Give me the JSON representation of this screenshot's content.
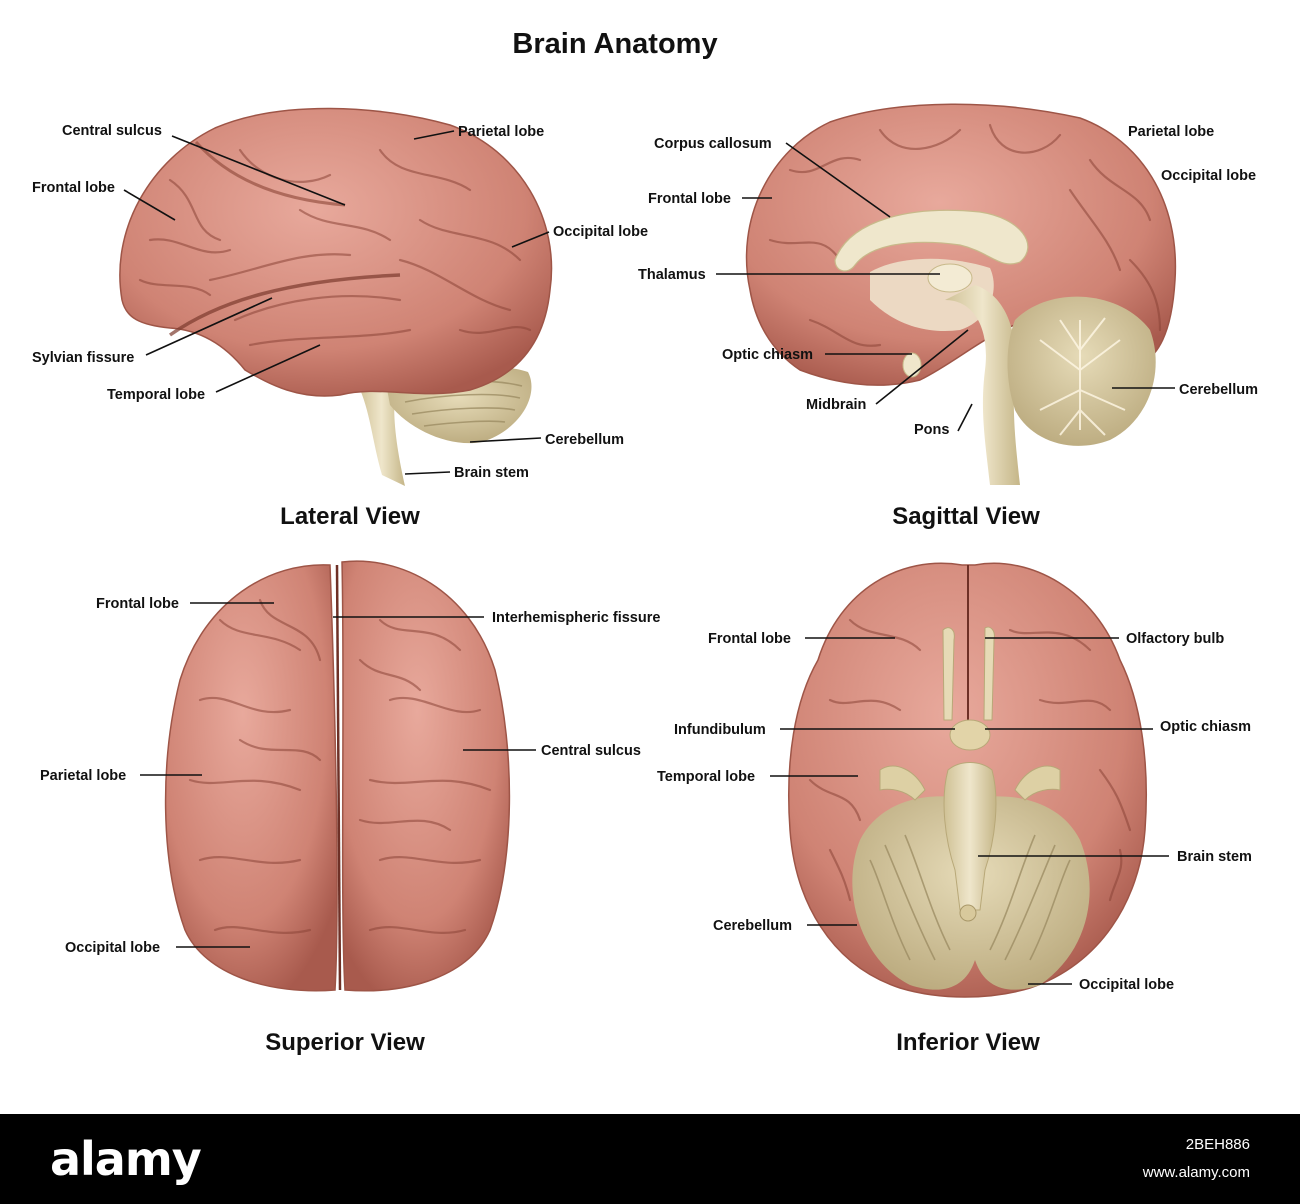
{
  "title": "Brain Anatomy",
  "colors": {
    "cortex": "#d48a7e",
    "cortex_dark": "#b5665a",
    "stem": "#e4d8b4",
    "cerebellum": "#cdbf92",
    "footer": "#000000"
  },
  "views": {
    "lateral": {
      "caption": "Lateral View",
      "labels": [
        "Central sulcus",
        "Parietal lobe",
        "Frontal lobe",
        "Occipital lobe",
        "Sylvian fissure",
        "Temporal lobe",
        "Cerebellum",
        "Brain stem"
      ]
    },
    "sagittal": {
      "caption": "Sagittal View",
      "labels": [
        "Corpus callosum",
        "Parietal lobe",
        "Occipital lobe",
        "Frontal lobe",
        "Thalamus",
        "Optic chiasm",
        "Midbrain",
        "Pons",
        "Cerebellum"
      ]
    },
    "superior": {
      "caption": "Superior View",
      "labels": [
        "Frontal lobe",
        "Interhemispheric fissure",
        "Central sulcus",
        "Parietal lobe",
        "Occipital lobe"
      ]
    },
    "inferior": {
      "caption": "Inferior View",
      "labels": [
        "Frontal lobe",
        "Olfactory bulb",
        "Infundibulum",
        "Optic chiasm",
        "Temporal lobe",
        "Brain stem",
        "Cerebellum",
        "Occipital lobe"
      ]
    }
  },
  "footer": {
    "logo": "alamy",
    "image_id": "2BEH886",
    "site": "www.alamy.com"
  }
}
